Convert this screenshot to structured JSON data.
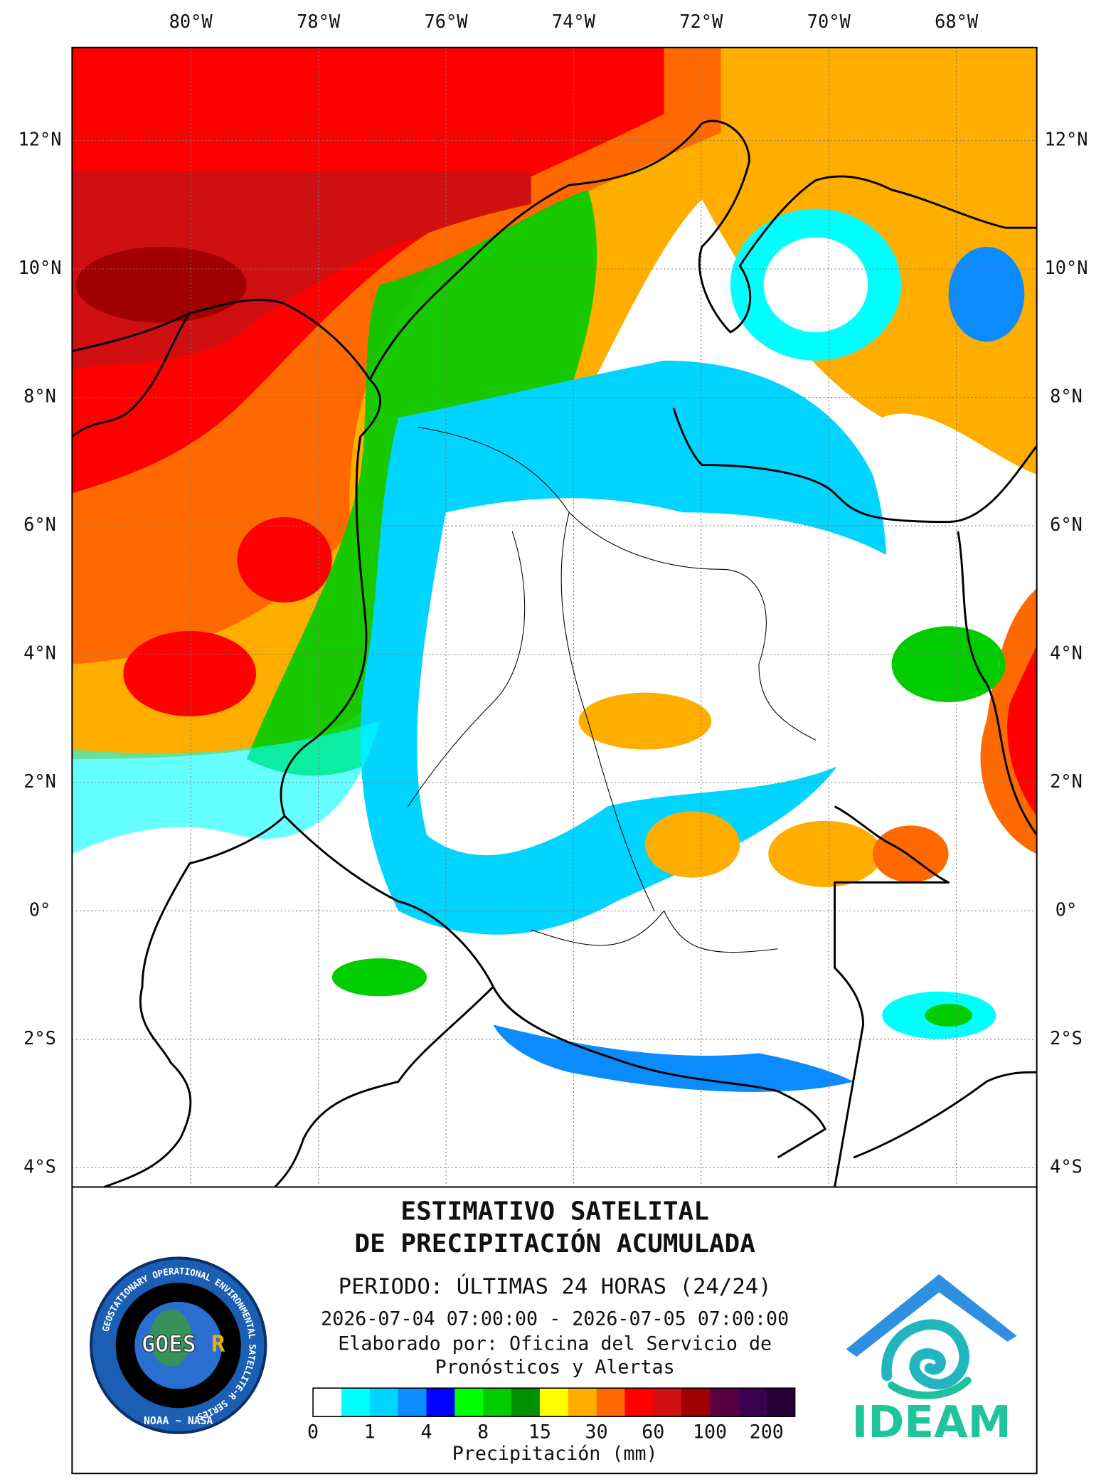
{
  "map": {
    "lonlim": [
      -81.86,
      -66.74
    ],
    "latlim": [
      -4.3,
      13.45
    ],
    "lon_ticks": [
      {
        "value": -80,
        "label": "80°W"
      },
      {
        "value": -78,
        "label": "78°W"
      },
      {
        "value": -76,
        "label": "76°W"
      },
      {
        "value": -74,
        "label": "74°W"
      },
      {
        "value": -72,
        "label": "72°W"
      },
      {
        "value": -70,
        "label": "70°W"
      },
      {
        "value": -68,
        "label": "68°W"
      }
    ],
    "lat_ticks": [
      {
        "value": 12,
        "label": "12°N"
      },
      {
        "value": 10,
        "label": "10°N"
      },
      {
        "value": 8,
        "label": "8°N"
      },
      {
        "value": 6,
        "label": "6°N"
      },
      {
        "value": 4,
        "label": "4°N"
      },
      {
        "value": 2,
        "label": "2°N"
      },
      {
        "value": 0,
        "label": "0°"
      },
      {
        "value": -2,
        "label": "2°S"
      },
      {
        "value": -4,
        "label": "4°S"
      }
    ]
  },
  "title": {
    "line1": "ESTIMATIVO SATELITAL",
    "line2": "DE PRECIPITACIÓN ACUMULADA"
  },
  "period": "PERIODO: ÚLTIMAS 24 HORAS (24/24)",
  "dates": "2026-07-04 07:00:00 - 2026-07-05 07:00:00",
  "credit": [
    "Elaborado por: Oficina del Servicio de",
    "Pronósticos y Alertas"
  ],
  "legend": {
    "title": "Precipitación (mm)",
    "colors": [
      "#ffffff",
      "#00ffff",
      "#00d4ff",
      "#0a8cff",
      "#0000ff",
      "#00ff00",
      "#00cc00",
      "#009000",
      "#ffff00",
      "#ffae00",
      "#ff6a00",
      "#ff0000",
      "#d01010",
      "#a00000",
      "#5a0040",
      "#3c0050",
      "#280038"
    ],
    "labels": [
      0,
      1,
      4,
      8,
      15,
      30,
      60,
      100,
      200
    ]
  },
  "logos": {
    "goes": "GOES",
    "goes_r": "R",
    "goes_ring": "GEOSTATIONARY OPERATIONAL ENVIRONMENTAL SATELLITE-R SERIES",
    "goes_agencies": "NOAA ~ NASA",
    "ideam": "IDEAM"
  }
}
